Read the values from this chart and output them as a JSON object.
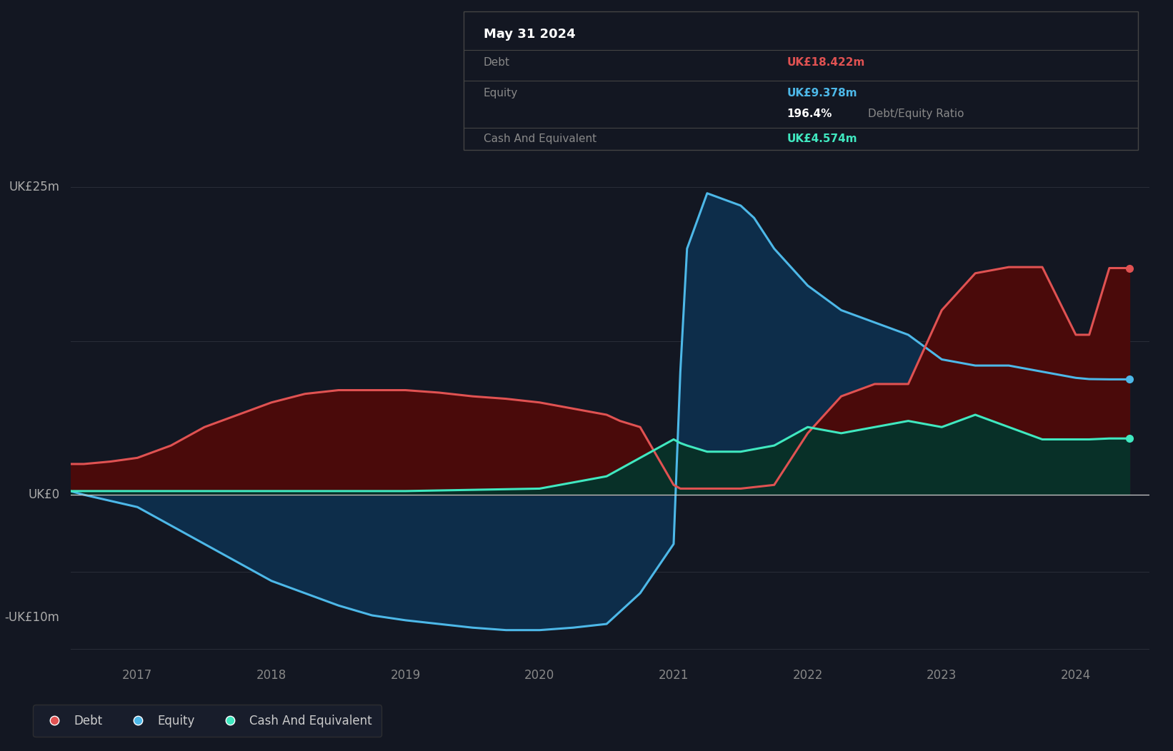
{
  "background_color": "#131722",
  "plot_bg": "#161b2a",
  "grid_color": "#2a2e39",
  "zero_line_color": "#aaaaaa",
  "debt_color": "#e05252",
  "debt_fill": "#4a0a0a",
  "equity_color": "#4db8e8",
  "equity_fill": "#0d2d4a",
  "cash_color": "#40e8c0",
  "cash_fill": "#083028",
  "xlim": [
    2016.5,
    2024.55
  ],
  "ylim": [
    -13.5,
    28
  ],
  "debt_x": [
    2016.5,
    2016.6,
    2016.8,
    2017.0,
    2017.25,
    2017.5,
    2017.75,
    2018.0,
    2018.25,
    2018.5,
    2018.75,
    2019.0,
    2019.25,
    2019.5,
    2019.75,
    2020.0,
    2020.25,
    2020.5,
    2020.6,
    2020.75,
    2021.0,
    2021.05,
    2021.1,
    2021.25,
    2021.5,
    2021.75,
    2022.0,
    2022.25,
    2022.5,
    2022.75,
    2023.0,
    2023.25,
    2023.5,
    2023.75,
    2024.0,
    2024.1,
    2024.25,
    2024.4
  ],
  "debt_y": [
    2.5,
    2.5,
    2.7,
    3.0,
    4.0,
    5.5,
    6.5,
    7.5,
    8.2,
    8.5,
    8.5,
    8.5,
    8.3,
    8.0,
    7.8,
    7.5,
    7.0,
    6.5,
    6.0,
    5.5,
    0.8,
    0.5,
    0.5,
    0.5,
    0.5,
    0.8,
    5.0,
    8.0,
    9.0,
    9.0,
    15.0,
    18.0,
    18.5,
    18.5,
    13.0,
    13.0,
    18.422,
    18.422
  ],
  "equity_x": [
    2016.5,
    2016.6,
    2016.8,
    2017.0,
    2017.25,
    2017.5,
    2017.75,
    2018.0,
    2018.25,
    2018.5,
    2018.75,
    2019.0,
    2019.25,
    2019.5,
    2019.75,
    2020.0,
    2020.25,
    2020.5,
    2020.75,
    2021.0,
    2021.05,
    2021.1,
    2021.25,
    2021.5,
    2021.6,
    2021.75,
    2022.0,
    2022.25,
    2022.5,
    2022.75,
    2023.0,
    2023.25,
    2023.5,
    2023.75,
    2024.0,
    2024.1,
    2024.25,
    2024.4
  ],
  "equity_y": [
    0.3,
    0.0,
    -0.5,
    -1.0,
    -2.5,
    -4.0,
    -5.5,
    -7.0,
    -8.0,
    -9.0,
    -9.8,
    -10.2,
    -10.5,
    -10.8,
    -11.0,
    -11.0,
    -10.8,
    -10.5,
    -8.0,
    -4.0,
    10.0,
    20.0,
    24.5,
    23.5,
    22.5,
    20.0,
    17.0,
    15.0,
    14.0,
    13.0,
    11.0,
    10.5,
    10.5,
    10.0,
    9.5,
    9.4,
    9.378,
    9.378
  ],
  "cash_x": [
    2016.5,
    2016.6,
    2016.8,
    2017.0,
    2017.5,
    2018.0,
    2018.5,
    2019.0,
    2019.5,
    2020.0,
    2020.5,
    2021.0,
    2021.05,
    2021.1,
    2021.25,
    2021.5,
    2021.75,
    2022.0,
    2022.25,
    2022.5,
    2022.75,
    2023.0,
    2023.25,
    2023.5,
    2023.75,
    2024.0,
    2024.1,
    2024.25,
    2024.4
  ],
  "cash_y": [
    0.3,
    0.3,
    0.3,
    0.3,
    0.3,
    0.3,
    0.3,
    0.3,
    0.4,
    0.5,
    1.5,
    4.5,
    4.2,
    4.0,
    3.5,
    3.5,
    4.0,
    5.5,
    5.0,
    5.5,
    6.0,
    5.5,
    6.5,
    5.5,
    4.5,
    4.5,
    4.5,
    4.574,
    4.574
  ],
  "xticks": [
    2017,
    2018,
    2019,
    2020,
    2021,
    2022,
    2023,
    2024
  ],
  "legend_items": [
    {
      "label": "Debt",
      "color": "#e05252"
    },
    {
      "label": "Equity",
      "color": "#4db8e8"
    },
    {
      "label": "Cash And Equivalent",
      "color": "#40e8c0"
    }
  ],
  "tooltip_date": "May 31 2024",
  "tooltip_debt_label": "Debt",
  "tooltip_debt_value": "UK£18.422m",
  "tooltip_equity_label": "Equity",
  "tooltip_equity_value": "UK£9.378m",
  "tooltip_ratio": "196.4%",
  "tooltip_ratio_text": "Debt/Equity Ratio",
  "tooltip_cash_label": "Cash And Equivalent",
  "tooltip_cash_value": "UK£4.574m",
  "label_uk25": "UK£25m",
  "label_uk0": "UK£0",
  "label_ukneg10": "-UK£10m"
}
